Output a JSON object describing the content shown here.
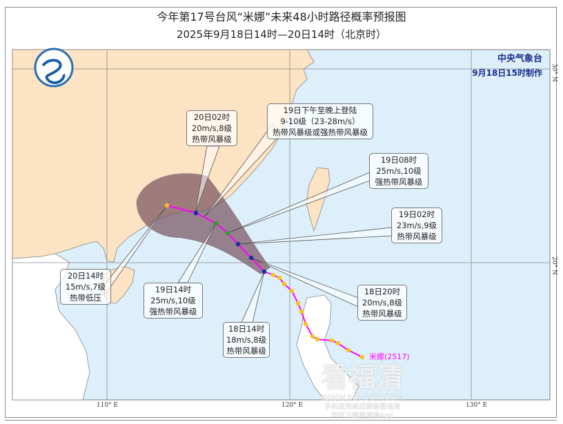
{
  "title": "今年第17号台风“米娜”未来48小时路径概率预报图",
  "subtitle": "2025年9月18日14时—20日14时（北京时）",
  "agency": {
    "name": "中央气象台",
    "issued": "9月18日15时制作"
  },
  "axes": {
    "lon": [
      "110° E",
      "120° E",
      "130° E"
    ],
    "lat": [
      "30° N",
      "20° N"
    ]
  },
  "typhoon": {
    "name": "米娜",
    "code": "(2517)",
    "track_color": "#ff00ff",
    "cone_color": "#7a5560"
  },
  "labels": [
    {
      "time": "20日02时",
      "wind": "20m/s,8级",
      "level": "热带风暴级"
    },
    {
      "time": "19日下午至晚上登陆",
      "wind": "9-10级（23-28m/s）",
      "level": "热带风暴级或强热带风暴级"
    },
    {
      "time": "19日08时",
      "wind": "25m/s,10级",
      "level": "强热带风暴级"
    },
    {
      "time": "19日02时",
      "wind": "23m/s,9级",
      "level": "热带风暴级"
    },
    {
      "time": "20日14时",
      "wind": "15m/s,7级",
      "level": "热带低压"
    },
    {
      "time": "19日14时",
      "wind": "25m/s,10级",
      "level": "强热带风暴级"
    },
    {
      "time": "18日14时",
      "wind": "18m/s,8级",
      "level": "热带风暴级"
    },
    {
      "time": "18日20时",
      "wind": "20m/s,8级",
      "level": "热带风暴级"
    }
  ],
  "watermark": {
    "brand": "看福清",
    "url": "WWW.FQLOOK.COM",
    "line1": "手机应用商店搜索看福清",
    "line2": "均可下载看福清App"
  }
}
